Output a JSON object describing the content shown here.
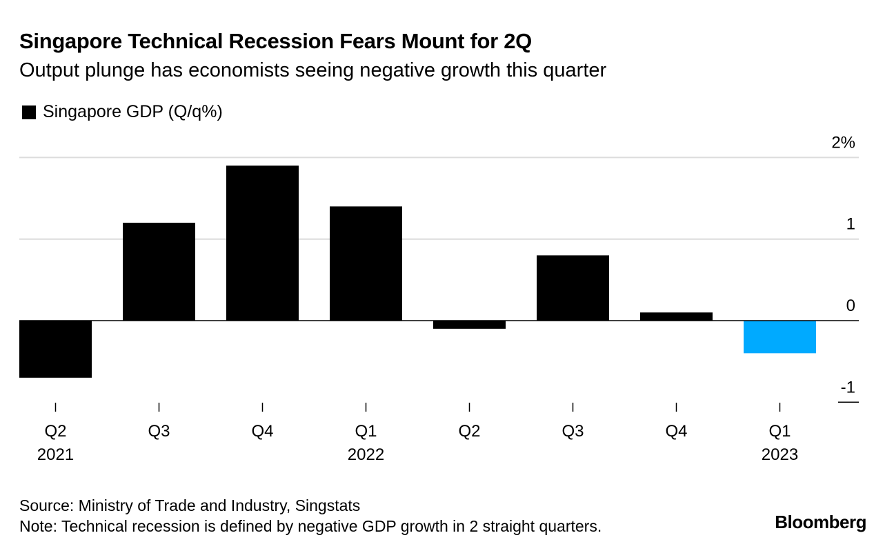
{
  "title": "Singapore Technical Recession Fears Mount for 2Q",
  "subtitle": "Output plunge has economists seeing negative growth this quarter",
  "source": "Source: Ministry of Trade and Industry, Singstats",
  "note": "Note: Technical recession is defined by negative GDP growth in 2 straight quarters.",
  "logo": "Bloomberg",
  "chart_data": {
    "type": "bar",
    "title": "Singapore Technical Recession Fears Mount for 2Q",
    "subtitle": "Output plunge has economists seeing negative growth this quarter",
    "categories": [
      "Q2 2021",
      "Q3 2021",
      "Q4 2021",
      "Q1 2022",
      "Q2 2022",
      "Q3 2022",
      "Q4 2022",
      "Q1 2023"
    ],
    "tick_labels": [
      "Q2",
      "Q3",
      "Q4",
      "Q1",
      "Q2",
      "Q3",
      "Q4",
      "Q1"
    ],
    "year_labels": [
      "2021",
      "",
      "",
      "2022",
      "",
      "",
      "",
      "2023"
    ],
    "series": [
      {
        "name": "Singapore GDP (Q/q%)",
        "values": [
          -0.7,
          1.2,
          1.9,
          1.4,
          -0.1,
          0.8,
          0.1,
          -0.4
        ],
        "color": "#000000",
        "highlight_color": "#00aaff",
        "highlight_index": 7
      }
    ],
    "ylim": [
      -1,
      2
    ],
    "yticks": [
      2,
      1,
      0,
      -1
    ],
    "ytick_labels": [
      "2%",
      "1",
      "0",
      "-1"
    ],
    "y_axis_side": "right",
    "grid": true,
    "legend": "top-left"
  }
}
